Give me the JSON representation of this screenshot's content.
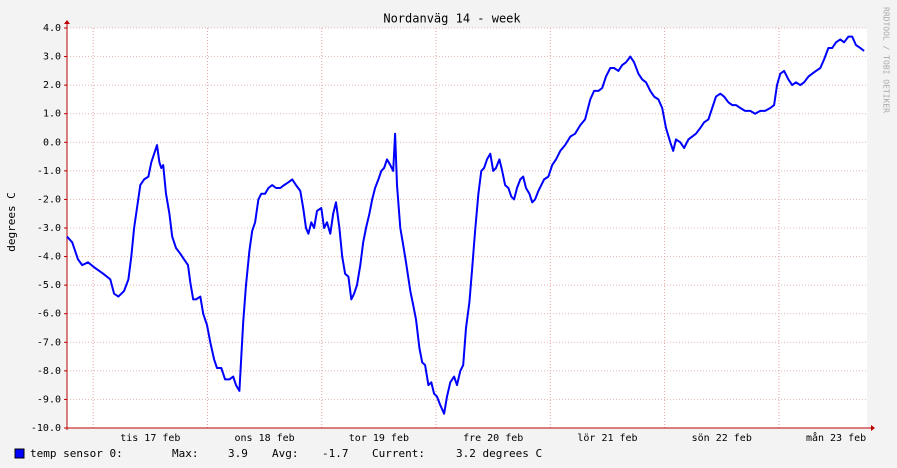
{
  "chart_data": {
    "type": "line",
    "title": "Nordanväg 14 - week",
    "ylabel": "degrees C",
    "watermark": "RRDTOOL / TOBI OETIKER",
    "xlim": [
      -5.5,
      162.5
    ],
    "ylim": [
      -10,
      4
    ],
    "xticks": [
      {
        "value": 12,
        "label": "tis 17 feb"
      },
      {
        "value": 36,
        "label": "ons 18 feb"
      },
      {
        "value": 60,
        "label": "tor 19 feb"
      },
      {
        "value": 84,
        "label": "fre 20 feb"
      },
      {
        "value": 108,
        "label": "lör 21 feb"
      },
      {
        "value": 132,
        "label": "sön 22 feb"
      },
      {
        "value": 156,
        "label": "mån 23 feb"
      }
    ],
    "xgrid": [
      0,
      24,
      48,
      72,
      96,
      120,
      144
    ],
    "yticks": [
      {
        "value": 4,
        "label": "4.0"
      },
      {
        "value": 3,
        "label": "3.0"
      },
      {
        "value": 2,
        "label": "2.0"
      },
      {
        "value": 1,
        "label": "1.0"
      },
      {
        "value": 0,
        "label": "0.0"
      },
      {
        "value": -1,
        "label": "-1.0"
      },
      {
        "value": -2,
        "label": "-2.0"
      },
      {
        "value": -3,
        "label": "-3.0"
      },
      {
        "value": -4,
        "label": "-4.0"
      },
      {
        "value": -5,
        "label": "-5.0"
      },
      {
        "value": -6,
        "label": "-6.0"
      },
      {
        "value": -7,
        "label": "-7.0"
      },
      {
        "value": -8,
        "label": "-8.0"
      },
      {
        "value": -9,
        "label": "-9.0"
      },
      {
        "value": -10,
        "label": "-10.0"
      }
    ],
    "grid": true,
    "series": [
      {
        "name": "temp sensor 0:",
        "color": "#0000ff",
        "x": [
          -5.5,
          -4.4,
          -3.2,
          -2.3,
          -1.1,
          0.4,
          2.1,
          3.6,
          4.4,
          5.3,
          6.5,
          7.4,
          8.0,
          8.6,
          9.2,
          9.9,
          10.7,
          11.6,
          12.2,
          13.0,
          13.4,
          13.9,
          14.3,
          14.7,
          15.3,
          16.0,
          16.6,
          17.4,
          18.3,
          19.1,
          19.9,
          20.4,
          21.0,
          21.6,
          22.5,
          23.1,
          23.9,
          24.6,
          25.4,
          26.0,
          26.9,
          27.7,
          28.6,
          29.4,
          30.0,
          30.7,
          31.1,
          31.5,
          32.1,
          32.8,
          33.4,
          34.0,
          34.7,
          35.3,
          36.1,
          36.8,
          37.6,
          38.4,
          39.3,
          40.1,
          41.0,
          41.8,
          42.6,
          43.5,
          44.1,
          44.7,
          45.2,
          45.8,
          46.4,
          47.0,
          47.9,
          48.5,
          49.1,
          49.8,
          50.4,
          51.0,
          51.7,
          52.3,
          52.9,
          53.6,
          54.2,
          54.8,
          55.4,
          56.1,
          56.7,
          57.3,
          58.0,
          58.6,
          59.2,
          59.9,
          60.5,
          61.1,
          61.7,
          62.4,
          63.0,
          63.4,
          63.8,
          64.5,
          65.1,
          65.7,
          66.6,
          67.2,
          67.8,
          68.5,
          69.1,
          69.7,
          70.4,
          71.0,
          71.6,
          72.2,
          72.9,
          73.7,
          74.3,
          75.0,
          75.8,
          76.4,
          77.1,
          77.7,
          78.3,
          79.0,
          79.6,
          80.2,
          80.9,
          81.5,
          82.1,
          82.7,
          83.4,
          84.0,
          84.6,
          85.3,
          85.9,
          86.5,
          87.2,
          87.8,
          88.4,
          89.0,
          89.7,
          90.3,
          90.9,
          91.6,
          92.2,
          92.8,
          93.5,
          94.1,
          94.7,
          95.6,
          96.4,
          97.2,
          98.1,
          99.1,
          100.2,
          101.2,
          102.3,
          103.3,
          104.4,
          105.2,
          106.1,
          106.9,
          107.7,
          108.6,
          109.4,
          110.3,
          111.1,
          111.9,
          112.8,
          113.6,
          114.5,
          115.3,
          116.1,
          117.0,
          117.8,
          118.7,
          119.5,
          120.3,
          121.2,
          121.8,
          122.4,
          123.3,
          124.1,
          125.0,
          125.8,
          126.6,
          127.5,
          128.3,
          129.2,
          130.0,
          130.8,
          131.7,
          132.5,
          133.4,
          134.2,
          135.0,
          135.9,
          136.9,
          138.0,
          139.0,
          140.1,
          141.1,
          142.2,
          143.0,
          143.6,
          144.3,
          145.1,
          146.0,
          146.8,
          147.6,
          148.5,
          149.3,
          150.2,
          151.0,
          151.8,
          152.7,
          153.5,
          154.4,
          155.2,
          156.0,
          156.9,
          157.7,
          158.6,
          159.4,
          160.2,
          161.1,
          161.9
        ],
        "values": [
          -3.3,
          -3.5,
          -4.1,
          -4.3,
          -4.2,
          -4.4,
          -4.6,
          -4.8,
          -5.3,
          -5.4,
          -5.2,
          -4.8,
          -4.0,
          -3.0,
          -2.3,
          -1.5,
          -1.3,
          -1.2,
          -0.7,
          -0.3,
          -0.1,
          -0.7,
          -0.9,
          -0.8,
          -1.8,
          -2.5,
          -3.3,
          -3.7,
          -3.9,
          -4.1,
          -4.3,
          -4.9,
          -5.5,
          -5.5,
          -5.4,
          -6.0,
          -6.4,
          -7.0,
          -7.6,
          -7.9,
          -7.9,
          -8.3,
          -8.3,
          -8.2,
          -8.5,
          -8.7,
          -7.5,
          -6.3,
          -5.0,
          -3.8,
          -3.1,
          -2.8,
          -2.0,
          -1.8,
          -1.8,
          -1.6,
          -1.5,
          -1.6,
          -1.6,
          -1.5,
          -1.4,
          -1.3,
          -1.5,
          -1.7,
          -2.3,
          -3.0,
          -3.2,
          -2.8,
          -3.0,
          -2.4,
          -2.3,
          -3.0,
          -2.8,
          -3.2,
          -2.5,
          -2.1,
          -3.0,
          -4.0,
          -4.6,
          -4.7,
          -5.5,
          -5.3,
          -5.0,
          -4.3,
          -3.5,
          -3.0,
          -2.5,
          -2.0,
          -1.6,
          -1.3,
          -1.0,
          -0.9,
          -0.6,
          -0.8,
          -1.0,
          0.3,
          -1.5,
          -3.0,
          -3.6,
          -4.2,
          -5.2,
          -5.7,
          -6.2,
          -7.2,
          -7.7,
          -7.8,
          -8.5,
          -8.4,
          -8.8,
          -8.9,
          -9.2,
          -9.5,
          -8.9,
          -8.4,
          -8.2,
          -8.5,
          -8.0,
          -7.8,
          -6.5,
          -5.6,
          -4.4,
          -3.1,
          -1.8,
          -1.0,
          -0.9,
          -0.6,
          -0.4,
          -1.0,
          -0.9,
          -0.6,
          -1.0,
          -1.5,
          -1.6,
          -1.9,
          -2.0,
          -1.6,
          -1.3,
          -1.2,
          -1.6,
          -1.8,
          -2.1,
          -2.0,
          -1.7,
          -1.5,
          -1.3,
          -1.2,
          -0.8,
          -0.6,
          -0.3,
          -0.1,
          0.2,
          0.3,
          0.6,
          0.8,
          1.5,
          1.8,
          1.8,
          1.9,
          2.3,
          2.6,
          2.6,
          2.5,
          2.7,
          2.8,
          3.0,
          2.8,
          2.4,
          2.2,
          2.1,
          1.8,
          1.6,
          1.5,
          1.2,
          0.5,
          0.0,
          -0.3,
          0.1,
          0.0,
          -0.2,
          0.1,
          0.2,
          0.3,
          0.5,
          0.7,
          0.8,
          1.2,
          1.6,
          1.7,
          1.6,
          1.4,
          1.3,
          1.3,
          1.2,
          1.1,
          1.1,
          1.0,
          1.1,
          1.1,
          1.2,
          1.3,
          2.0,
          2.4,
          2.5,
          2.2,
          2.0,
          2.1,
          2.0,
          2.1,
          2.3,
          2.4,
          2.5,
          2.6,
          2.9,
          3.3,
          3.3,
          3.5,
          3.6,
          3.5,
          3.7,
          3.7,
          3.4,
          3.3,
          3.2
        ]
      }
    ],
    "legend_stats": [
      {
        "label": "Max:",
        "value": 3.9
      },
      {
        "label": "Avg:",
        "value": -1.7
      },
      {
        "label": "Current:",
        "value": "3.2 degrees C"
      }
    ]
  }
}
